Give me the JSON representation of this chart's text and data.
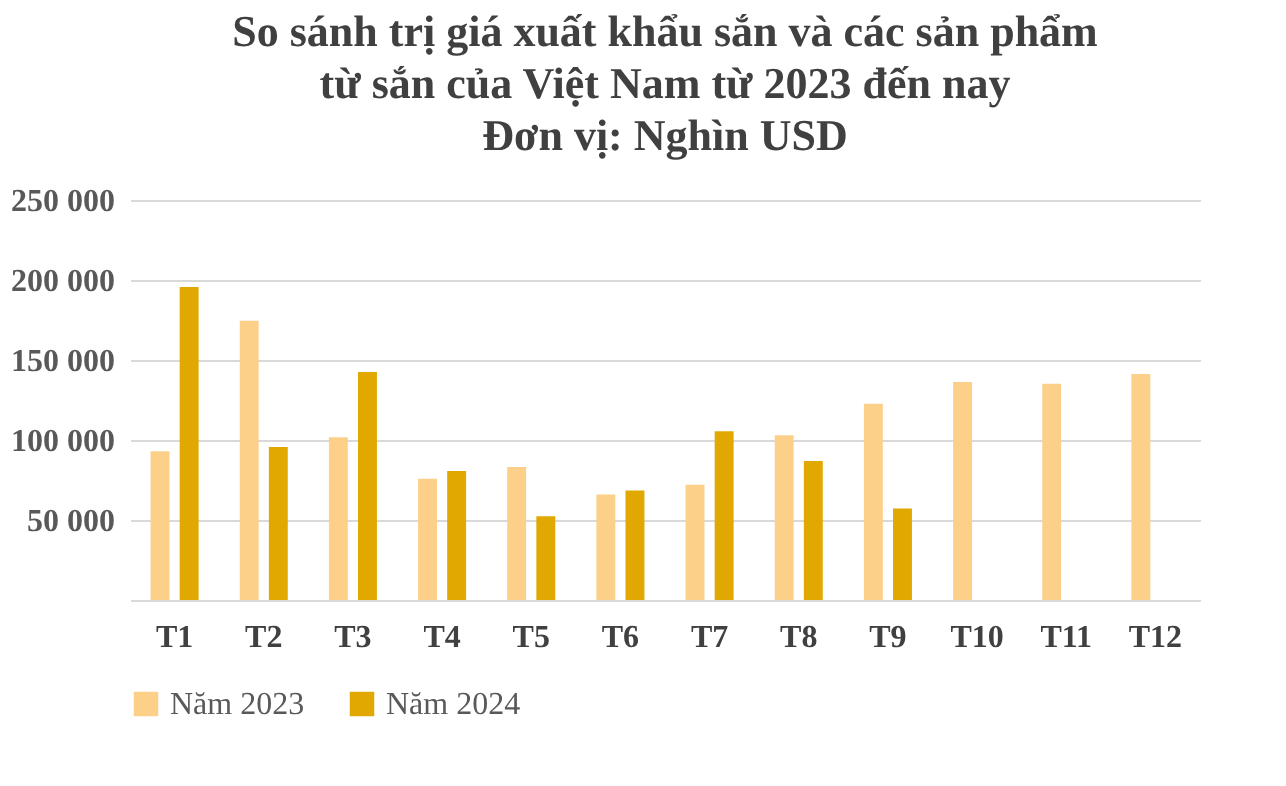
{
  "chart_data": {
    "type": "bar",
    "title": [
      "So sánh trị giá xuất khẩu sắn và các sản phẩm",
      "từ sắn của Việt Nam từ 2023 đến nay",
      "Đơn vị: Nghìn USD"
    ],
    "categories": [
      "T1",
      "T2",
      "T3",
      "T4",
      "T5",
      "T6",
      "T7",
      "T8",
      "T9",
      "T10",
      "T11",
      "T12"
    ],
    "series": [
      {
        "name": "Năm 2023",
        "color": "#fdd08a",
        "values": [
          93000,
          174600,
          101700,
          75800,
          83200,
          65900,
          72000,
          103000,
          122700,
          136300,
          135100,
          141300
        ]
      },
      {
        "name": "Năm 2024",
        "color": "#e0a800",
        "values": [
          195600,
          95600,
          142500,
          80700,
          52300,
          68400,
          105400,
          86900,
          57200,
          null,
          null,
          null
        ]
      }
    ],
    "ylim": [
      0,
      250000
    ],
    "yticks": [
      {
        "value": 0,
        "label": null
      },
      {
        "value": 50000,
        "label": "50 000"
      },
      {
        "value": 100000,
        "label": "100 000"
      },
      {
        "value": 150000,
        "label": "150 000"
      },
      {
        "value": 200000,
        "label": "200 000"
      },
      {
        "value": 250000,
        "label": "250 000"
      }
    ],
    "grid": "y",
    "legend": "bottom"
  }
}
